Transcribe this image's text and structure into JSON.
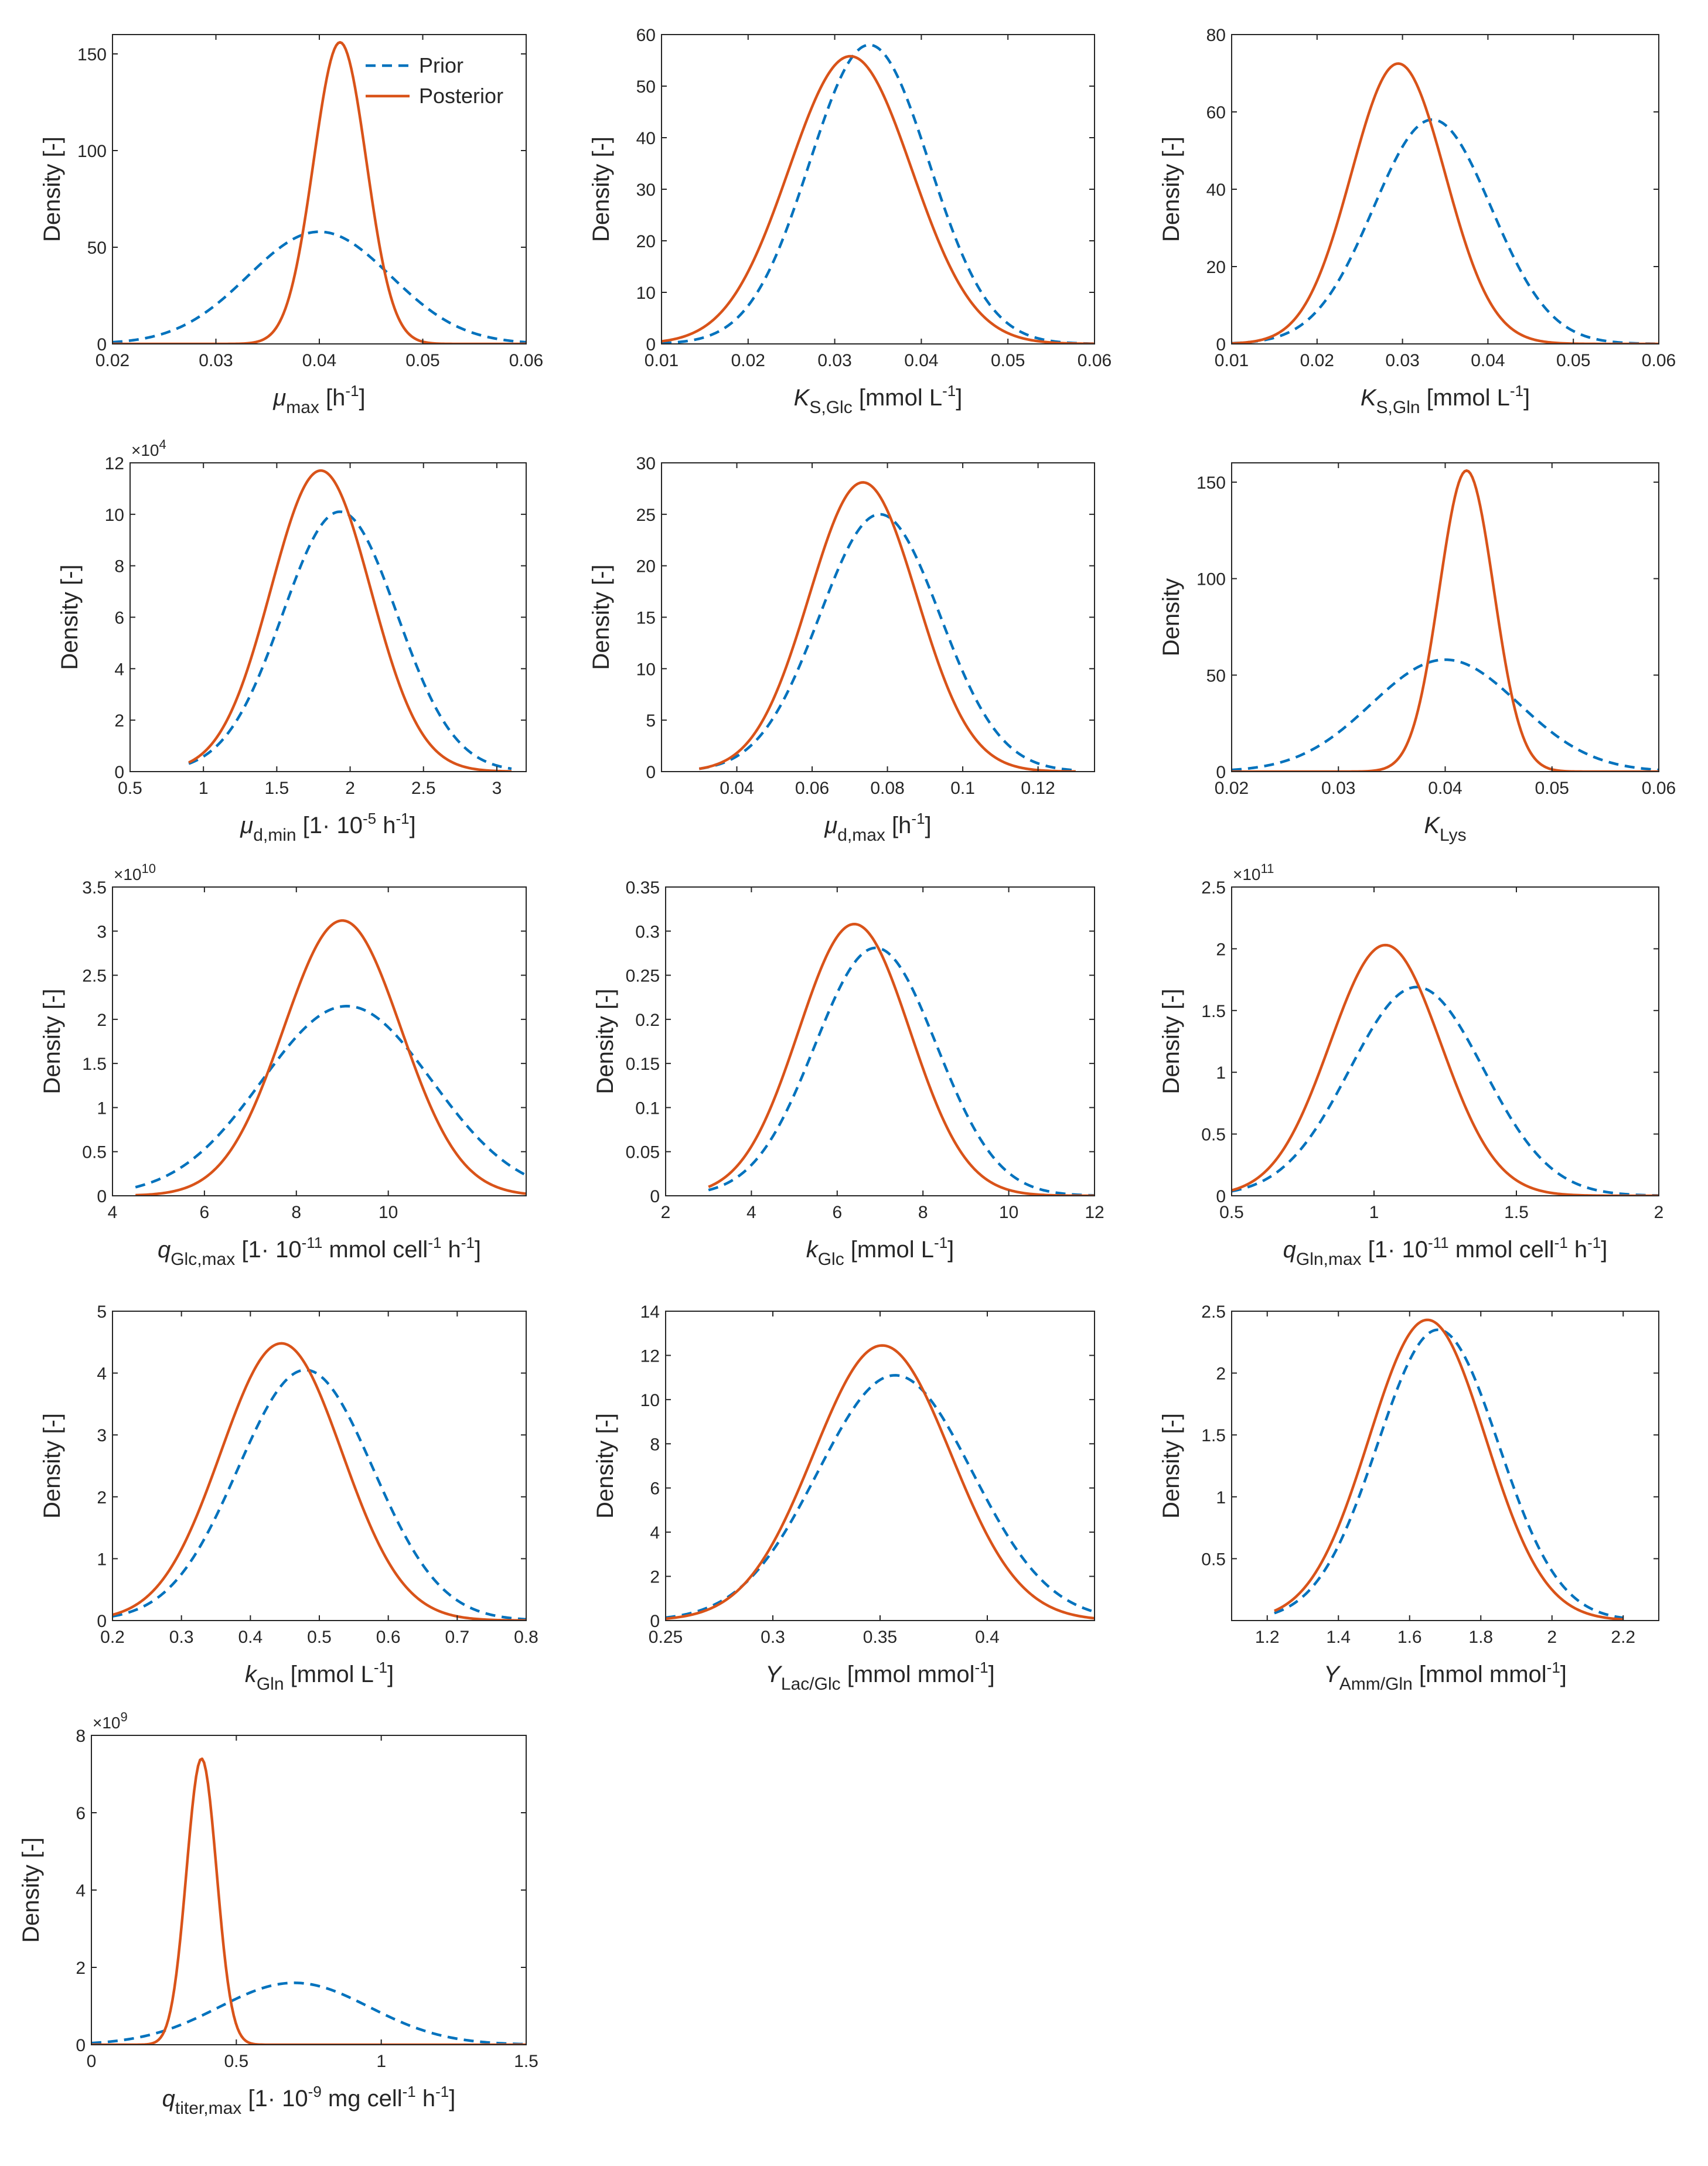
{
  "colors": {
    "prior": "#0072BD",
    "posterior": "#D95319",
    "axis": "#262626"
  },
  "legend": {
    "prior_label": "Prior",
    "posterior_label": "Posterior",
    "placement": "top-right of first panel"
  },
  "chart_data": [
    {
      "type": "line",
      "title": "",
      "xlabel": {
        "main": "μ",
        "sub": "max",
        "unit_pre": " [h",
        "unit_sup": "-1",
        "unit_post": "]"
      },
      "ylabel": "Density [-]",
      "xlim": [
        0.02,
        0.06
      ],
      "ylim": [
        0,
        160
      ],
      "xticks": [
        0.02,
        0.03,
        0.04,
        0.05,
        0.06
      ],
      "xtick_labels": [
        "0.02",
        "0.03",
        "0.04",
        "0.05",
        "0.06"
      ],
      "yticks": [
        0,
        50,
        100,
        150
      ],
      "ytick_labels": [
        "0",
        "50",
        "100",
        "150"
      ],
      "exponent": null,
      "legend": true,
      "series": [
        {
          "name": "Prior",
          "mean": 0.04,
          "sd": 0.0069,
          "peak": 58,
          "x_range": [
            0.02,
            0.06
          ]
        },
        {
          "name": "Posterior",
          "mean": 0.042,
          "sd": 0.00255,
          "peak": 156,
          "x_range": [
            0.02,
            0.06
          ]
        }
      ]
    },
    {
      "type": "line",
      "title": "",
      "xlabel": {
        "main": "K",
        "sub": "S,Glc",
        "unit_pre": " [mmol L",
        "unit_sup": "-1",
        "unit_post": "]"
      },
      "ylabel": "Density [-]",
      "xlim": [
        0.01,
        0.06
      ],
      "ylim": [
        0,
        60
      ],
      "xticks": [
        0.01,
        0.02,
        0.03,
        0.04,
        0.05,
        0.06
      ],
      "xtick_labels": [
        "0.01",
        "0.02",
        "0.03",
        "0.04",
        "0.05",
        "0.06"
      ],
      "yticks": [
        0,
        10,
        20,
        30,
        40,
        50,
        60
      ],
      "ytick_labels": [
        "0",
        "10",
        "20",
        "30",
        "40",
        "50",
        "60"
      ],
      "exponent": null,
      "legend": false,
      "series": [
        {
          "name": "Prior",
          "mean": 0.034,
          "sd": 0.0069,
          "peak": 58,
          "x_range": [
            0.01,
            0.06
          ]
        },
        {
          "name": "Posterior",
          "mean": 0.0318,
          "sd": 0.0071,
          "peak": 55.8,
          "x_range": [
            0.01,
            0.06
          ]
        }
      ]
    },
    {
      "type": "line",
      "title": "",
      "xlabel": {
        "main": "K",
        "sub": "S,Gln",
        "unit_pre": " [mmol L",
        "unit_sup": "-1",
        "unit_post": "]"
      },
      "ylabel": "Density [-]",
      "xlim": [
        0.01,
        0.06
      ],
      "ylim": [
        0,
        80
      ],
      "xticks": [
        0.01,
        0.02,
        0.03,
        0.04,
        0.05,
        0.06
      ],
      "xtick_labels": [
        "0.01",
        "0.02",
        "0.03",
        "0.04",
        "0.05",
        "0.06"
      ],
      "yticks": [
        0,
        20,
        40,
        60,
        80
      ],
      "ytick_labels": [
        "0",
        "20",
        "40",
        "60",
        "80"
      ],
      "exponent": null,
      "legend": false,
      "series": [
        {
          "name": "Prior",
          "mean": 0.0335,
          "sd": 0.0069,
          "peak": 58,
          "x_range": [
            0.01,
            0.06
          ]
        },
        {
          "name": "Posterior",
          "mean": 0.0295,
          "sd": 0.0055,
          "peak": 72.5,
          "x_range": [
            0.01,
            0.06
          ]
        }
      ]
    },
    {
      "type": "line",
      "title": "",
      "xlabel": {
        "main": "μ",
        "sub": "d,min",
        "unit_pre": " [1· 10",
        "unit_sup": "-5",
        "unit_post": " h",
        "unit_sup2": "-1",
        "unit_post2": "]"
      },
      "ylabel": "Density [-]",
      "xlim": [
        0.5,
        3.2
      ],
      "ylim": [
        0,
        12
      ],
      "xticks": [
        0.5,
        1,
        1.5,
        2,
        2.5,
        3
      ],
      "xtick_labels": [
        "0.5",
        "1",
        "1.5",
        "2",
        "2.5",
        "3"
      ],
      "yticks": [
        0,
        2,
        4,
        6,
        8,
        10,
        12
      ],
      "ytick_labels": [
        "0",
        "2",
        "4",
        "6",
        "8",
        "10",
        "12"
      ],
      "exponent": {
        "base": "×10",
        "power": "4"
      },
      "legend": false,
      "series": [
        {
          "name": "Prior",
          "mean": 1.93,
          "sd": 0.39,
          "peak": 10.1,
          "x_range": [
            0.9,
            3.1
          ]
        },
        {
          "name": "Posterior",
          "mean": 1.8,
          "sd": 0.34,
          "peak": 11.7,
          "x_range": [
            0.9,
            3.1
          ]
        }
      ]
    },
    {
      "type": "line",
      "title": "",
      "xlabel": {
        "main": "μ",
        "sub": "d,max",
        "unit_pre": " [h",
        "unit_sup": "-1",
        "unit_post": "]"
      },
      "ylabel": "Density [-]",
      "xlim": [
        0.02,
        0.135
      ],
      "ylim": [
        0,
        30
      ],
      "xticks": [
        0.04,
        0.06,
        0.08,
        0.1,
        0.12
      ],
      "xtick_labels": [
        "0.04",
        "0.06",
        "0.08",
        "0.1",
        "0.12"
      ],
      "yticks": [
        0,
        5,
        10,
        15,
        20,
        25,
        30
      ],
      "ytick_labels": [
        "0",
        "5",
        "10",
        "15",
        "20",
        "25",
        "30"
      ],
      "exponent": null,
      "legend": false,
      "series": [
        {
          "name": "Prior",
          "mean": 0.078,
          "sd": 0.016,
          "peak": 25,
          "x_range": [
            0.03,
            0.13
          ]
        },
        {
          "name": "Posterior",
          "mean": 0.0735,
          "sd": 0.0143,
          "peak": 28.1,
          "x_range": [
            0.03,
            0.13
          ]
        }
      ]
    },
    {
      "type": "line",
      "title": "",
      "xlabel": {
        "main": "K",
        "sub": "Lys",
        "unit_pre": "",
        "unit_sup": "",
        "unit_post": ""
      },
      "ylabel": "Density",
      "xlim": [
        0.02,
        0.06
      ],
      "ylim": [
        0,
        160
      ],
      "xticks": [
        0.02,
        0.03,
        0.04,
        0.05,
        0.06
      ],
      "xtick_labels": [
        "0.02",
        "0.03",
        "0.04",
        "0.05",
        "0.06"
      ],
      "yticks": [
        0,
        50,
        100,
        150
      ],
      "ytick_labels": [
        "0",
        "50",
        "100",
        "150"
      ],
      "exponent": null,
      "legend": false,
      "series": [
        {
          "name": "Prior",
          "mean": 0.04,
          "sd": 0.0069,
          "peak": 58,
          "x_range": [
            0.02,
            0.06
          ]
        },
        {
          "name": "Posterior",
          "mean": 0.042,
          "sd": 0.00255,
          "peak": 156,
          "x_range": [
            0.02,
            0.06
          ]
        }
      ]
    },
    {
      "type": "line",
      "title": "",
      "xlabel": {
        "main": "q",
        "sub": "Glc,max",
        "unit_pre": " [1· 10",
        "unit_sup": "-11",
        "unit_post": " mmol cell",
        "unit_sup2": "-1",
        "unit_post2": " h",
        "unit_sup3": "-1",
        "unit_post3": "]"
      },
      "ylabel": "Density [-]",
      "xlim": [
        4,
        13
      ],
      "ylim": [
        0,
        3.5
      ],
      "xticks": [
        4,
        6,
        8,
        10
      ],
      "xtick_labels": [
        "4",
        "6",
        "8",
        "10"
      ],
      "yticks": [
        0,
        0.5,
        1,
        1.5,
        2,
        2.5,
        3,
        3.5
      ],
      "ytick_labels": [
        "0",
        "0.5",
        "1",
        "1.5",
        "2",
        "2.5",
        "3",
        "3.5"
      ],
      "exponent": {
        "base": "×10",
        "power": "10"
      },
      "legend": false,
      "series": [
        {
          "name": "Prior",
          "mean": 9.1,
          "sd": 1.85,
          "peak": 2.15,
          "x_range": [
            4.5,
            13
          ]
        },
        {
          "name": "Posterior",
          "mean": 9.0,
          "sd": 1.28,
          "peak": 3.12,
          "x_range": [
            4.5,
            13
          ]
        }
      ]
    },
    {
      "type": "line",
      "title": "",
      "xlabel": {
        "main": "k",
        "sub": "Glc",
        "unit_pre": " [mmol L",
        "unit_sup": "-1",
        "unit_post": "]"
      },
      "ylabel": "Density [-]",
      "xlim": [
        2,
        12
      ],
      "ylim": [
        0,
        0.35
      ],
      "xticks": [
        2,
        4,
        6,
        8,
        10,
        12
      ],
      "xtick_labels": [
        "2",
        "4",
        "6",
        "8",
        "10",
        "12"
      ],
      "yticks": [
        0,
        0.05,
        0.1,
        0.15,
        0.2,
        0.25,
        0.3,
        0.35
      ],
      "ytick_labels": [
        "0",
        "0.05",
        "0.1",
        "0.15",
        "0.2",
        "0.25",
        "0.3",
        "0.35"
      ],
      "exponent": null,
      "legend": false,
      "series": [
        {
          "name": "Prior",
          "mean": 6.9,
          "sd": 1.42,
          "peak": 0.281,
          "x_range": [
            3,
            12
          ]
        },
        {
          "name": "Posterior",
          "mean": 6.4,
          "sd": 1.3,
          "peak": 0.308,
          "x_range": [
            3,
            12
          ]
        }
      ]
    },
    {
      "type": "line",
      "title": "",
      "xlabel": {
        "main": "q",
        "sub": "Gln,max",
        "unit_pre": " [1· 10",
        "unit_sup": "-11",
        "unit_post": " mmol cell",
        "unit_sup2": "-1",
        "unit_post2": " h",
        "unit_sup3": "-1",
        "unit_post3": "]"
      },
      "ylabel": "Density [-]",
      "xlim": [
        0.5,
        2
      ],
      "ylim": [
        0,
        2.5
      ],
      "xticks": [
        0.5,
        1,
        1.5,
        2
      ],
      "xtick_labels": [
        "0.5",
        "1",
        "1.5",
        "2"
      ],
      "yticks": [
        0,
        0.5,
        1,
        1.5,
        2,
        2.5
      ],
      "ytick_labels": [
        "0",
        "0.5",
        "1",
        "1.5",
        "2",
        "2.5"
      ],
      "exponent": {
        "base": "×10",
        "power": "11"
      },
      "legend": false,
      "series": [
        {
          "name": "Prior",
          "mean": 1.15,
          "sd": 0.235,
          "peak": 1.69,
          "x_range": [
            0.5,
            2
          ]
        },
        {
          "name": "Posterior",
          "mean": 1.04,
          "sd": 0.195,
          "peak": 2.03,
          "x_range": [
            0.5,
            2
          ]
        }
      ]
    },
    {
      "type": "line",
      "title": "",
      "xlabel": {
        "main": "k",
        "sub": "Gln",
        "unit_pre": " [mmol L",
        "unit_sup": "-1",
        "unit_post": "]"
      },
      "ylabel": "Density [-]",
      "xlim": [
        0.2,
        0.8
      ],
      "ylim": [
        0,
        5
      ],
      "xticks": [
        0.2,
        0.3,
        0.4,
        0.5,
        0.6,
        0.7,
        0.8
      ],
      "xtick_labels": [
        "0.2",
        "0.3",
        "0.4",
        "0.5",
        "0.6",
        "0.7",
        "0.8"
      ],
      "yticks": [
        0,
        1,
        2,
        3,
        4,
        5
      ],
      "ytick_labels": [
        "0",
        "1",
        "2",
        "3",
        "4",
        "5"
      ],
      "exponent": null,
      "legend": false,
      "series": [
        {
          "name": "Prior",
          "mean": 0.48,
          "sd": 0.098,
          "peak": 4.05,
          "x_range": [
            0.2,
            0.8
          ]
        },
        {
          "name": "Posterior",
          "mean": 0.445,
          "sd": 0.088,
          "peak": 4.48,
          "x_range": [
            0.2,
            0.8
          ]
        }
      ]
    },
    {
      "type": "line",
      "title": "",
      "xlabel": {
        "main": "Y",
        "sub": "Lac/Glc",
        "unit_pre": " [mmol mmol",
        "unit_sup": "-1",
        "unit_post": "]"
      },
      "ylabel": "Density [-]",
      "xlim": [
        0.25,
        0.45
      ],
      "ylim": [
        0,
        14
      ],
      "xticks": [
        0.25,
        0.3,
        0.35,
        0.4
      ],
      "xtick_labels": [
        "0.25",
        "0.3",
        "0.35",
        "0.4"
      ],
      "yticks": [
        0,
        2,
        4,
        6,
        8,
        10,
        12,
        14
      ],
      "ytick_labels": [
        "0",
        "2",
        "4",
        "6",
        "8",
        "10",
        "12",
        "14"
      ],
      "exponent": null,
      "legend": false,
      "series": [
        {
          "name": "Prior",
          "mean": 0.357,
          "sd": 0.036,
          "peak": 11.1,
          "x_range": [
            0.25,
            0.45
          ]
        },
        {
          "name": "Posterior",
          "mean": 0.351,
          "sd": 0.032,
          "peak": 12.45,
          "x_range": [
            0.25,
            0.45
          ]
        }
      ]
    },
    {
      "type": "line",
      "title": "",
      "xlabel": {
        "main": "Y",
        "sub": "Amm/Gln",
        "unit_pre": " [mmol mmol",
        "unit_sup": "-1",
        "unit_post": "]"
      },
      "ylabel": "Density [-]",
      "xlim": [
        1.1,
        2.3
      ],
      "ylim": [
        0,
        2.5
      ],
      "xticks": [
        1.2,
        1.4,
        1.6,
        1.8,
        2,
        2.2
      ],
      "xtick_labels": [
        "1.2",
        "1.4",
        "1.6",
        "1.8",
        "2",
        "2.2"
      ],
      "yticks": [
        0.5,
        1,
        1.5,
        2,
        2.5
      ],
      "ytick_labels": [
        "0.5",
        "1",
        "1.5",
        "2",
        "2.5"
      ],
      "exponent": null,
      "legend": false,
      "series": [
        {
          "name": "Prior",
          "mean": 1.68,
          "sd": 0.17,
          "peak": 2.35,
          "x_range": [
            1.22,
            2.2
          ]
        },
        {
          "name": "Posterior",
          "mean": 1.65,
          "sd": 0.164,
          "peak": 2.43,
          "x_range": [
            1.22,
            2.2
          ]
        }
      ]
    },
    {
      "type": "line",
      "title": "",
      "xlabel": {
        "main": "q",
        "sub": "titer,max",
        "unit_pre": " [1· 10",
        "unit_sup": "-9",
        "unit_post": " mg cell",
        "unit_sup2": "-1",
        "unit_post2": " h",
        "unit_sup3": "-1",
        "unit_post3": "]"
      },
      "ylabel": "Density [-]",
      "xlim": [
        0,
        1.5
      ],
      "ylim": [
        0,
        8
      ],
      "xticks": [
        0,
        0.5,
        1,
        1.5
      ],
      "xtick_labels": [
        "0",
        "0.5",
        "1",
        "1.5"
      ],
      "yticks": [
        0,
        2,
        4,
        6,
        8
      ],
      "ytick_labels": [
        "0",
        "2",
        "4",
        "6",
        "8"
      ],
      "exponent": {
        "base": "×10",
        "power": "9"
      },
      "legend": false,
      "series": [
        {
          "name": "Prior",
          "mean": 0.7,
          "sd": 0.26,
          "peak": 1.6,
          "x_range": [
            0,
            1.5
          ]
        },
        {
          "name": "Posterior",
          "mean": 0.38,
          "sd": 0.052,
          "peak": 7.4,
          "x_range": [
            0,
            1.5
          ]
        }
      ]
    }
  ]
}
